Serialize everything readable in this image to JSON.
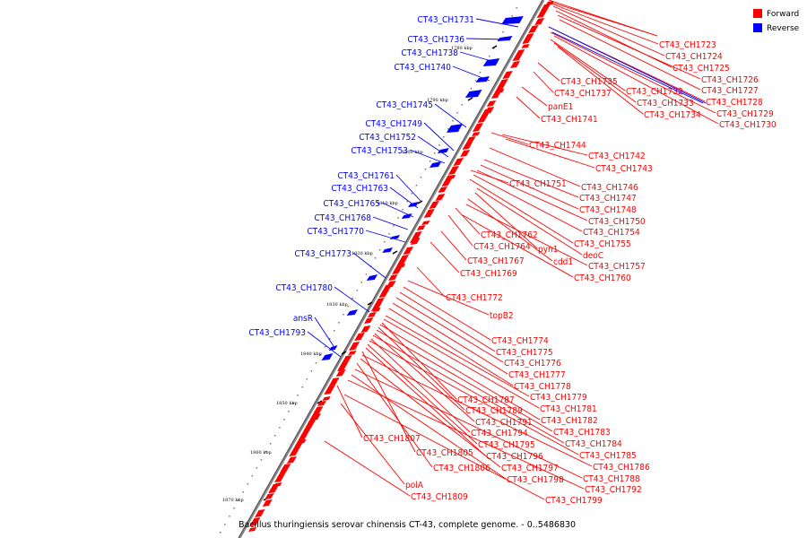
{
  "legend": {
    "items": [
      {
        "label": "Forward",
        "color": "#ff0000"
      },
      {
        "label": "Reverse",
        "color": "#0000ff"
      }
    ]
  },
  "caption": "Bacillus thuringiensis serovar chinensis CT-43, complete genome. - 0..5486830",
  "colors": {
    "forward": "#ff0000",
    "reverse": "#0000ff",
    "backbone": "#777777"
  },
  "ticks": [
    "1780 kbp",
    "1790 kbp",
    "1800 kbp",
    "1810 kbp",
    "1820 kbp",
    "1830 kbp",
    "1840 kbp",
    "1850 kbp",
    "1860 kbp",
    "1870 kbp"
  ],
  "forward_genes": [
    "CT43_CH1723",
    "CT43_CH1724",
    "CT43_CH1725",
    "CT43_CH1726",
    "CT43_CH1727",
    "CT43_CH1728",
    "CT43_CH1729",
    "CT43_CH1730",
    "CT43_CH1735",
    "CT43_CH1732",
    "CT43_CH1737",
    "CT43_CH1733",
    "CT43_CH1734",
    "panE1",
    "CT43_CH1741",
    "CT43_CH1744",
    "CT43_CH1742",
    "CT43_CH1743",
    "CT43_CH1751",
    "CT43_CH1746",
    "CT43_CH1747",
    "CT43_CH1748",
    "CT43_CH1750",
    "CT43_CH1754",
    "CT43_CH1762",
    "CT43_CH1755",
    "CT43_CH1764",
    "pyn1",
    "deoC",
    "cdd1",
    "CT43_CH1767",
    "CT43_CH1757",
    "CT43_CH1769",
    "CT43_CH1760",
    "CT43_CH1772",
    "topB2",
    "CT43_CH1774",
    "CT43_CH1775",
    "CT43_CH1776",
    "CT43_CH1777",
    "CT43_CH1778",
    "CT43_CH1779",
    "CT43_CH1787",
    "CT43_CH1781",
    "CT43_CH1789",
    "CT43_CH1782",
    "CT43_CH1791",
    "CT43_CH1783",
    "CT43_CH1794",
    "CT43_CH1784",
    "CT43_CH1795",
    "CT43_CH1807",
    "CT43_CH1785",
    "CT43_CH1805",
    "CT43_CH1796",
    "CT43_CH1786",
    "CT43_CH1806",
    "CT43_CH1797",
    "CT43_CH1788",
    "CT43_CH1798",
    "CT43_CH1792",
    "polA",
    "CT43_CH1799",
    "CT43_CH1809"
  ],
  "reverse_genes": [
    "CT43_CH1731",
    "CT43_CH1736",
    "CT43_CH1738",
    "CT43_CH1740",
    "CT43_CH1745",
    "CT43_CH1749",
    "CT43_CH1752",
    "CT43_CH1753",
    "CT43_CH1761",
    "CT43_CH1763",
    "CT43_CH1765",
    "CT43_CH1768",
    "CT43_CH1770",
    "CT43_CH1773",
    "CT43_CH1780",
    "ansR",
    "CT43_CH1793"
  ]
}
